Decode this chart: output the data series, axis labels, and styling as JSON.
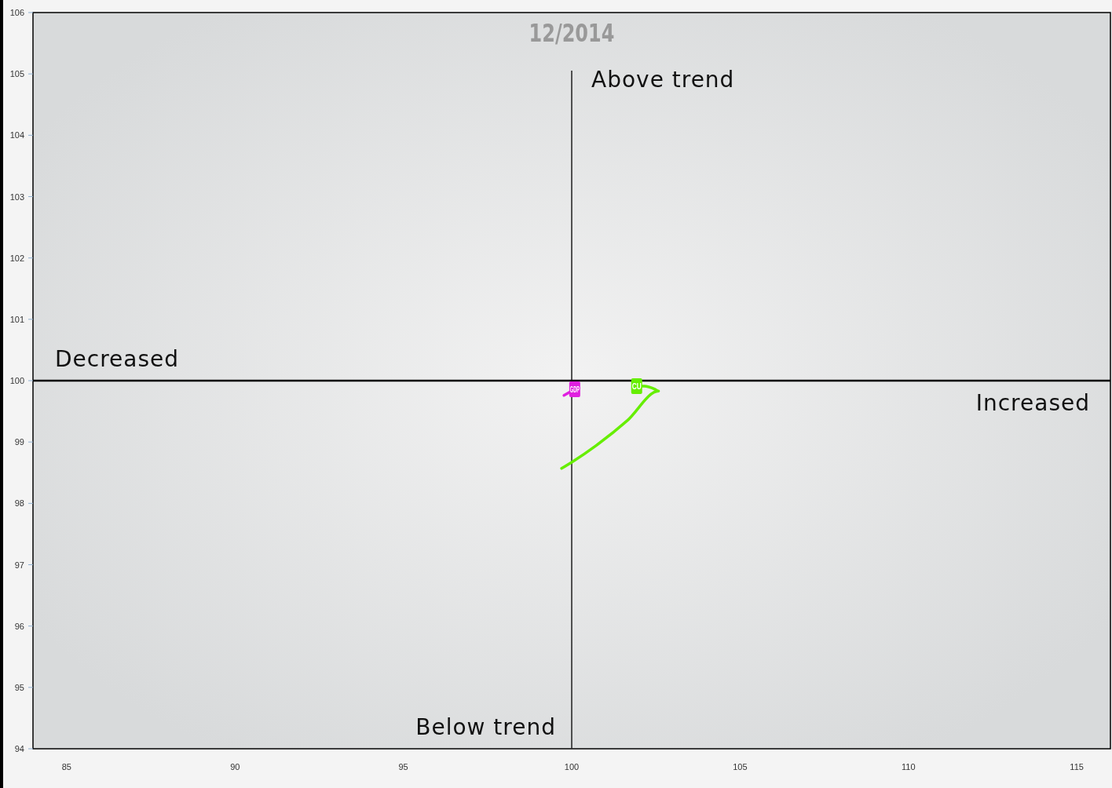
{
  "chart_data": {
    "type": "line",
    "title": "12/2014",
    "xlim": [
      84,
      116
    ],
    "ylim": [
      94,
      106
    ],
    "xticks": [
      85,
      90,
      95,
      100,
      105,
      110,
      115
    ],
    "yticks": [
      94,
      95,
      96,
      97,
      98,
      99,
      100,
      101,
      102,
      103,
      104,
      105,
      106
    ],
    "grid": false,
    "series": [
      {
        "name": "GDP",
        "color": "#e020e0",
        "x": [
          99.77,
          100.09
        ],
        "values": [
          99.76,
          99.86
        ]
      },
      {
        "name": "CU",
        "color": "#66ee00",
        "x": [
          99.7,
          100,
          100.72,
          101.65,
          102.58,
          102.47,
          102.16,
          101.93
        ],
        "values": [
          98.57,
          98.67,
          98.94,
          99.35,
          99.83,
          99.86,
          99.91,
          99.91
        ]
      }
    ],
    "ref_lines": [
      {
        "axis": "x",
        "value": 100,
        "color": "#2a2a2a"
      },
      {
        "axis": "y",
        "value": 100,
        "color": "#000000"
      }
    ],
    "annotations": [
      "Above trend",
      "Decreased",
      "Increased",
      "Below trend"
    ]
  }
}
